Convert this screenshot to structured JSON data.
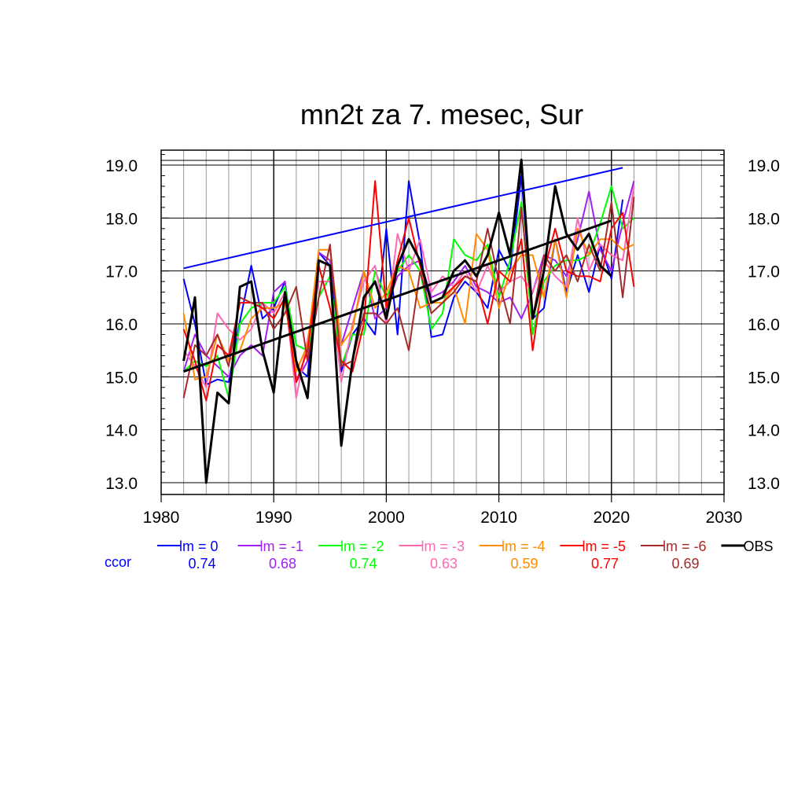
{
  "chart_data": {
    "type": "line",
    "title": "mn2t za 7. mesec, Sur",
    "xlim": [
      1980,
      2030
    ],
    "ylim": [
      13.0,
      19.0
    ],
    "x_ticks": [
      1980,
      1990,
      2000,
      2010,
      2020,
      2030
    ],
    "y_ticks": [
      "13.0",
      "14.0",
      "15.0",
      "16.0",
      "17.0",
      "18.0",
      "19.0"
    ],
    "grid": true,
    "legend_position": "bottom",
    "ccor_label": "ccor",
    "series": [
      {
        "name": "lm = 0",
        "color": "#0000ff",
        "ccor": "0.74",
        "x": [
          1982,
          1983,
          1984,
          1985,
          1986,
          1987,
          1988,
          1989,
          1990,
          1991,
          1992,
          1993,
          1994,
          1995,
          1996,
          1997,
          1998,
          1999,
          2000,
          2001,
          2002,
          2003,
          2004,
          2005,
          2006,
          2007,
          2008,
          2009,
          2010,
          2011,
          2012,
          2013,
          2014,
          2015,
          2016,
          2017,
          2018,
          2019,
          2020,
          2021
        ],
        "values": [
          16.85,
          16.0,
          14.85,
          14.95,
          14.9,
          16.05,
          17.1,
          16.1,
          16.3,
          16.8,
          15.2,
          15.0,
          17.35,
          17.1,
          15.1,
          15.8,
          16.1,
          15.8,
          17.8,
          15.8,
          18.7,
          17.5,
          15.75,
          15.8,
          16.5,
          16.8,
          16.6,
          16.3,
          17.4,
          17.0,
          18.8,
          16.1,
          16.3,
          17.6,
          16.6,
          17.3,
          16.6,
          17.5,
          16.85,
          18.35
        ]
      },
      {
        "name": "lm = -1",
        "color": "#a020f0",
        "ccor": "0.68",
        "x": [
          1982,
          1983,
          1984,
          1985,
          1986,
          1987,
          1988,
          1989,
          1990,
          1991,
          1992,
          1993,
          1994,
          1995,
          1996,
          1997,
          1998,
          1999,
          2000,
          2001,
          2002,
          2003,
          2004,
          2005,
          2006,
          2007,
          2008,
          2009,
          2010,
          2011,
          2012,
          2013,
          2014,
          2015,
          2016,
          2017,
          2018,
          2019,
          2020,
          2021,
          2022
        ],
        "values": [
          15.1,
          15.8,
          15.4,
          15.2,
          15.0,
          15.4,
          15.6,
          15.4,
          16.6,
          16.8,
          14.9,
          15.3,
          17.35,
          17.2,
          15.6,
          16.3,
          17.0,
          16.1,
          16.3,
          16.9,
          17.1,
          17.2,
          16.5,
          16.6,
          16.8,
          17.1,
          16.7,
          16.6,
          16.4,
          16.5,
          16.1,
          16.6,
          17.3,
          17.2,
          16.9,
          17.6,
          18.5,
          17.4,
          17.0,
          17.9,
          18.7
        ]
      },
      {
        "name": "lm = -2",
        "color": "#00ff00",
        "ccor": "0.74",
        "x": [
          1982,
          1983,
          1984,
          1985,
          1986,
          1987,
          1988,
          1989,
          1990,
          1991,
          1992,
          1993,
          1994,
          1995,
          1996,
          1997,
          1998,
          1999,
          2000,
          2001,
          2002,
          2003,
          2004,
          2005,
          2006,
          2007,
          2008,
          2009,
          2010,
          2011,
          2012,
          2013,
          2014,
          2015,
          2016,
          2017,
          2018,
          2019,
          2020,
          2021,
          2022
        ],
        "values": [
          15.1,
          15.3,
          15.2,
          15.4,
          14.6,
          16.0,
          16.3,
          16.4,
          16.4,
          16.7,
          15.6,
          15.5,
          16.5,
          16.9,
          15.2,
          15.8,
          15.8,
          17.0,
          16.5,
          17.0,
          17.3,
          17.0,
          15.9,
          16.2,
          17.6,
          17.3,
          17.2,
          17.5,
          16.5,
          17.2,
          18.3,
          15.8,
          16.8,
          17.1,
          17.2,
          17.2,
          17.3,
          17.9,
          18.6,
          17.8,
          18.0
        ]
      },
      {
        "name": "lm = -3",
        "color": "#ff69b4",
        "ccor": "0.63",
        "x": [
          1982,
          1983,
          1984,
          1985,
          1986,
          1987,
          1988,
          1989,
          1990,
          1991,
          1992,
          1993,
          1994,
          1995,
          1996,
          1997,
          1998,
          1999,
          2000,
          2001,
          2002,
          2003,
          2004,
          2005,
          2006,
          2007,
          2008,
          2009,
          2010,
          2011,
          2012,
          2013,
          2014,
          2015,
          2016,
          2017,
          2018,
          2019,
          2020,
          2021,
          2022
        ],
        "values": [
          15.5,
          15.2,
          14.8,
          16.2,
          15.9,
          15.7,
          15.9,
          16.4,
          16.2,
          16.6,
          14.6,
          15.7,
          16.8,
          16.8,
          14.9,
          16.0,
          16.8,
          17.1,
          16.0,
          17.7,
          17.0,
          17.6,
          16.6,
          16.9,
          16.7,
          17.0,
          16.6,
          17.1,
          16.6,
          16.8,
          16.9,
          16.6,
          17.2,
          16.9,
          16.7,
          18.0,
          17.0,
          17.5,
          17.3,
          17.2,
          18.6
        ]
      },
      {
        "name": "lm = -4",
        "color": "#ff8c00",
        "ccor": "0.59",
        "x": [
          1982,
          1983,
          1984,
          1985,
          1986,
          1987,
          1988,
          1989,
          1990,
          1991,
          1992,
          1993,
          1994,
          1995,
          1996,
          1997,
          1998,
          1999,
          2000,
          2001,
          2002,
          2003,
          2004,
          2005,
          2006,
          2007,
          2008,
          2009,
          2010,
          2011,
          2012,
          2013,
          2014,
          2015,
          2016,
          2017,
          2018,
          2019,
          2020,
          2021,
          2022
        ],
        "values": [
          16.2,
          14.95,
          15.0,
          15.8,
          15.3,
          15.5,
          16.1,
          16.3,
          16.3,
          16.4,
          15.1,
          15.6,
          17.4,
          17.4,
          15.6,
          15.9,
          17.0,
          16.3,
          16.6,
          17.1,
          17.0,
          16.3,
          16.4,
          16.4,
          16.7,
          16.0,
          17.7,
          17.4,
          16.3,
          17.0,
          17.3,
          17.3,
          16.5,
          17.6,
          16.5,
          17.8,
          17.3,
          17.6,
          17.6,
          17.4,
          17.5
        ]
      },
      {
        "name": "lm = -5",
        "color": "#ff0000",
        "ccor": "0.77",
        "x": [
          1982,
          1983,
          1984,
          1985,
          1986,
          1987,
          1988,
          1989,
          1990,
          1991,
          1992,
          1993,
          1994,
          1995,
          1996,
          1997,
          1998,
          1999,
          2000,
          2001,
          2002,
          2003,
          2004,
          2005,
          2006,
          2007,
          2008,
          2009,
          2010,
          2011,
          2012,
          2013,
          2014,
          2015,
          2016,
          2017,
          2018,
          2019,
          2020,
          2021,
          2022
        ],
        "values": [
          15.9,
          15.3,
          14.55,
          15.6,
          15.4,
          16.4,
          16.4,
          16.3,
          16.1,
          16.5,
          14.9,
          15.5,
          17.1,
          16.3,
          15.3,
          15.1,
          16.0,
          18.7,
          16.3,
          17.2,
          18.0,
          17.1,
          16.4,
          16.5,
          16.7,
          16.9,
          16.8,
          16.0,
          17.0,
          16.8,
          17.6,
          15.5,
          17.0,
          17.8,
          17.0,
          16.9,
          16.9,
          16.8,
          17.8,
          18.1,
          16.7
        ]
      },
      {
        "name": "lm = -6",
        "color": "#a52a2a",
        "ccor": "0.69",
        "x": [
          1982,
          1983,
          1984,
          1985,
          1986,
          1987,
          1988,
          1989,
          1990,
          1991,
          1992,
          1993,
          1994,
          1995,
          1996,
          1997,
          1998,
          1999,
          2000,
          2001,
          2002,
          2003,
          2004,
          2005,
          2006,
          2007,
          2008,
          2009,
          2010,
          2011,
          2012,
          2013,
          2014,
          2015,
          2016,
          2017,
          2018,
          2019,
          2020,
          2021,
          2022
        ],
        "values": [
          14.6,
          15.6,
          15.4,
          15.8,
          15.2,
          16.5,
          16.4,
          16.4,
          15.9,
          16.2,
          16.7,
          15.3,
          16.5,
          17.5,
          15.2,
          15.3,
          16.2,
          16.2,
          16.0,
          16.3,
          15.5,
          17.0,
          16.2,
          16.4,
          16.6,
          16.9,
          16.8,
          17.8,
          16.8,
          16.0,
          18.2,
          16.1,
          17.3,
          17.0,
          17.3,
          16.8,
          17.5,
          17.0,
          18.3,
          16.5,
          18.4
        ]
      },
      {
        "name": "OBS",
        "color": "#000000",
        "ccor": "",
        "x": [
          1982,
          1983,
          1984,
          1985,
          1986,
          1987,
          1988,
          1989,
          1990,
          1991,
          1992,
          1993,
          1994,
          1995,
          1996,
          1997,
          1998,
          1999,
          2000,
          2001,
          2002,
          2003,
          2004,
          2005,
          2006,
          2007,
          2008,
          2009,
          2010,
          2011,
          2012,
          2013,
          2014,
          2015,
          2016,
          2017,
          2018,
          2019,
          2020
        ],
        "values": [
          15.3,
          16.5,
          13.0,
          14.7,
          14.5,
          16.7,
          16.8,
          15.5,
          14.7,
          16.6,
          15.3,
          14.6,
          17.2,
          17.1,
          13.7,
          15.3,
          16.5,
          16.8,
          16.1,
          17.1,
          17.6,
          17.2,
          16.4,
          16.5,
          17.0,
          17.2,
          16.9,
          17.3,
          18.1,
          17.3,
          19.1,
          16.1,
          17.0,
          18.6,
          17.7,
          17.4,
          17.7,
          17.1,
          16.9
        ]
      }
    ],
    "trend_lines": [
      {
        "of": "lm = 0",
        "color": "#0000ff",
        "x": [
          1982,
          2021
        ],
        "values": [
          17.05,
          18.95
        ]
      },
      {
        "of": "OBS",
        "color": "#000000",
        "x": [
          1982,
          2020
        ],
        "values": [
          15.1,
          17.95
        ]
      }
    ]
  }
}
